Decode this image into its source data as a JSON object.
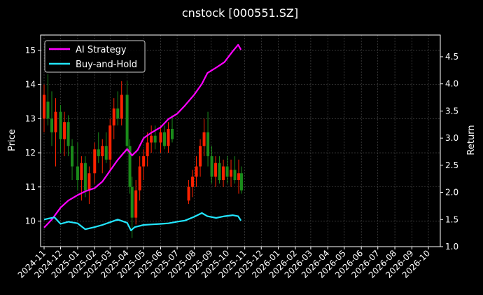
{
  "chart_data": {
    "type": "line",
    "title": "cnstock [000551.SZ]",
    "ylabel_left": "Price",
    "ylabel_right": "Return",
    "xlabel": "",
    "x_tick_labels": [
      "2024-11",
      "2024-12",
      "2025-01",
      "2025-02",
      "2025-03",
      "2025-04",
      "2025-05",
      "2025-06",
      "2025-07",
      "2025-08",
      "2025-09",
      "2025-10",
      "2025-11",
      "2025-12",
      "2026-01",
      "2026-02",
      "2026-03",
      "2026-04",
      "2026-05",
      "2026-06",
      "2026-07",
      "2026-08",
      "2026-09",
      "2026-10"
    ],
    "price_ylim": [
      9.25,
      15.45
    ],
    "price_ticks": [
      10,
      11,
      12,
      13,
      14,
      15
    ],
    "return_ylim": [
      1.0,
      4.9
    ],
    "return_ticks": [
      1.0,
      1.5,
      2.0,
      2.5,
      3.0,
      3.5,
      4.0,
      4.5
    ],
    "grid": true,
    "legend_position": "top-left",
    "background": "#000000",
    "colors": {
      "ai_strategy": "#ff00ff",
      "buy_and_hold": "#22e6ff",
      "candle_up": "#ff2200",
      "candle_down": "#1a8c1a",
      "grid": "#555555",
      "axes": "#ffffff"
    },
    "series": [
      {
        "name": "AI Strategy",
        "axis": "right",
        "points": [
          [
            "2024-11",
            1.35
          ],
          [
            "2024-11-15",
            1.5
          ],
          [
            "2024-12-01",
            1.72
          ],
          [
            "2024-12-15",
            1.85
          ],
          [
            "2025-01-01",
            1.95
          ],
          [
            "2025-01-15",
            2.02
          ],
          [
            "2025-02-01",
            2.08
          ],
          [
            "2025-02-15",
            2.2
          ],
          [
            "2025-03-01",
            2.4
          ],
          [
            "2025-03-15",
            2.6
          ],
          [
            "2025-04-01",
            2.8
          ],
          [
            "2025-04-10",
            2.68
          ],
          [
            "2025-04-20",
            2.78
          ],
          [
            "2025-05-01",
            3.0
          ],
          [
            "2025-05-15",
            3.1
          ],
          [
            "2025-06-01",
            3.2
          ],
          [
            "2025-06-15",
            3.35
          ],
          [
            "2025-07-01",
            3.45
          ],
          [
            "2025-07-15",
            3.6
          ],
          [
            "2025-08-01",
            3.8
          ],
          [
            "2025-08-15",
            4.0
          ],
          [
            "2025-08-25",
            4.2
          ],
          [
            "2025-09-10",
            4.3
          ],
          [
            "2025-09-25",
            4.4
          ],
          [
            "2025-10-10",
            4.6
          ],
          [
            "2025-10-20",
            4.72
          ],
          [
            "2025-10-25",
            4.63
          ]
        ]
      },
      {
        "name": "Buy-and-Hold",
        "axis": "right",
        "points": [
          [
            "2024-11",
            1.5
          ],
          [
            "2024-11-10",
            1.52
          ],
          [
            "2024-11-20",
            1.54
          ],
          [
            "2024-12-01",
            1.42
          ],
          [
            "2024-12-15",
            1.46
          ],
          [
            "2025-01-01",
            1.43
          ],
          [
            "2025-01-15",
            1.32
          ],
          [
            "2025-02-01",
            1.36
          ],
          [
            "2025-02-15",
            1.4
          ],
          [
            "2025-03-01",
            1.45
          ],
          [
            "2025-03-15",
            1.5
          ],
          [
            "2025-04-01",
            1.44
          ],
          [
            "2025-04-08",
            1.3
          ],
          [
            "2025-04-15",
            1.36
          ],
          [
            "2025-05-01",
            1.4
          ],
          [
            "2025-05-15",
            1.41
          ],
          [
            "2025-06-01",
            1.42
          ],
          [
            "2025-06-15",
            1.43
          ],
          [
            "2025-07-01",
            1.46
          ],
          [
            "2025-07-15",
            1.48
          ],
          [
            "2025-08-01",
            1.55
          ],
          [
            "2025-08-15",
            1.62
          ],
          [
            "2025-08-25",
            1.56
          ],
          [
            "2025-09-10",
            1.53
          ],
          [
            "2025-09-25",
            1.56
          ],
          [
            "2025-10-10",
            1.58
          ],
          [
            "2025-10-20",
            1.56
          ],
          [
            "2025-10-25",
            1.48
          ]
        ]
      },
      {
        "name": "Price candles",
        "axis": "left",
        "type": "candlestick",
        "note_free": true,
        "candles": [
          [
            "2024-11",
            13.0,
            14.0,
            12.6,
            13.7
          ],
          [
            "2024-11-08",
            13.5,
            14.3,
            12.8,
            13.0
          ],
          [
            "2024-11-15",
            13.0,
            13.8,
            12.2,
            12.6
          ],
          [
            "2024-11-22",
            12.6,
            13.6,
            11.6,
            13.2
          ],
          [
            "2024-12-01",
            13.2,
            13.4,
            12.0,
            12.4
          ],
          [
            "2024-12-08",
            12.4,
            13.2,
            11.9,
            12.9
          ],
          [
            "2024-12-15",
            12.9,
            13.1,
            11.9,
            12.2
          ],
          [
            "2024-12-22",
            12.2,
            12.4,
            11.2,
            11.6
          ],
          [
            "2025-01-01",
            11.6,
            12.3,
            10.9,
            11.2
          ],
          [
            "2025-01-08",
            11.2,
            11.9,
            10.6,
            11.7
          ],
          [
            "2025-01-15",
            11.7,
            11.9,
            10.7,
            10.9
          ],
          [
            "2025-01-22",
            10.9,
            11.6,
            10.5,
            11.4
          ],
          [
            "2025-02-01",
            11.4,
            12.3,
            11.1,
            12.1
          ],
          [
            "2025-02-08",
            12.1,
            12.6,
            11.7,
            11.9
          ],
          [
            "2025-02-15",
            11.9,
            12.4,
            11.4,
            12.2
          ],
          [
            "2025-02-22",
            12.2,
            12.6,
            11.7,
            11.8
          ],
          [
            "2025-03-01",
            11.8,
            13.0,
            11.5,
            12.8
          ],
          [
            "2025-03-08",
            12.8,
            13.6,
            12.4,
            13.3
          ],
          [
            "2025-03-15",
            13.3,
            13.8,
            12.8,
            13.0
          ],
          [
            "2025-03-22",
            13.0,
            14.1,
            12.8,
            13.7
          ],
          [
            "2025-04-01",
            13.7,
            14.1,
            12.0,
            12.2
          ],
          [
            "2025-04-06",
            12.2,
            12.4,
            10.8,
            11.0
          ],
          [
            "2025-04-10",
            11.0,
            11.3,
            9.5,
            10.1
          ],
          [
            "2025-04-17",
            10.1,
            11.2,
            9.9,
            10.9
          ],
          [
            "2025-04-24",
            10.9,
            11.9,
            10.6,
            11.6
          ],
          [
            "2025-05-01",
            11.6,
            12.1,
            11.2,
            11.9
          ],
          [
            "2025-05-08",
            11.9,
            12.6,
            11.6,
            12.3
          ],
          [
            "2025-05-15",
            12.3,
            12.8,
            12.0,
            12.5
          ],
          [
            "2025-05-22",
            12.5,
            12.8,
            12.1,
            12.3
          ],
          [
            "2025-06-01",
            12.3,
            12.8,
            12.0,
            12.6
          ],
          [
            "2025-06-08",
            12.6,
            12.8,
            12.1,
            12.2
          ],
          [
            "2025-06-15",
            12.2,
            12.9,
            12.0,
            12.7
          ],
          [
            "2025-06-22",
            12.7,
            13.1,
            12.3,
            12.4
          ],
          [
            "2025-07-22",
            10.6,
            11.2,
            10.5,
            11.0
          ],
          [
            "2025-07-29",
            11.0,
            11.5,
            10.7,
            11.3
          ],
          [
            "2025-08-05",
            11.3,
            11.9,
            11.0,
            11.6
          ],
          [
            "2025-08-12",
            11.6,
            12.4,
            11.3,
            12.2
          ],
          [
            "2025-08-19",
            12.2,
            13.0,
            11.9,
            12.6
          ],
          [
            "2025-08-26",
            12.6,
            13.2,
            11.6,
            11.9
          ],
          [
            "2025-09-02",
            11.9,
            12.2,
            11.1,
            11.3
          ],
          [
            "2025-09-09",
            11.3,
            11.9,
            11.0,
            11.7
          ],
          [
            "2025-09-16",
            11.7,
            11.9,
            11.1,
            11.2
          ],
          [
            "2025-09-23",
            11.2,
            11.8,
            11.0,
            11.6
          ],
          [
            "2025-09-30",
            11.6,
            11.9,
            11.1,
            11.3
          ],
          [
            "2025-10-07",
            11.3,
            11.8,
            11.0,
            11.5
          ],
          [
            "2025-10-14",
            11.5,
            11.9,
            11.1,
            11.2
          ],
          [
            "2025-10-21",
            11.2,
            11.8,
            10.8,
            11.4
          ],
          [
            "2025-10-26",
            11.4,
            11.6,
            10.8,
            10.9
          ]
        ]
      }
    ]
  }
}
